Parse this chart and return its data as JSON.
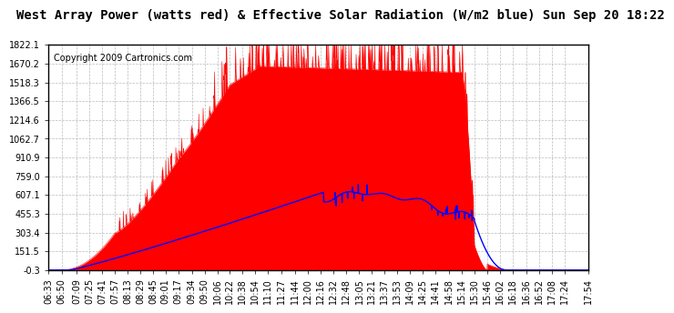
{
  "title": "West Array Power (watts red) & Effective Solar Radiation (W/m2 blue) Sun Sep 20 18:22",
  "copyright": "Copyright 2009 Cartronics.com",
  "background_color": "#ffffff",
  "plot_bg_color": "#ffffff",
  "grid_color": "#aaaaaa",
  "yticks": [
    -0.3,
    151.5,
    303.4,
    455.3,
    607.1,
    759.0,
    910.9,
    1062.7,
    1214.6,
    1366.5,
    1518.3,
    1670.2,
    1822.1
  ],
  "ytick_labels": [
    "-0.3",
    "151.5",
    "303.4",
    "455.3",
    "607.1",
    "759.0",
    "910.9",
    "1062.7",
    "1214.6",
    "1366.5",
    "1518.3",
    "1670.2",
    "1822.1"
  ],
  "ylim": [
    -0.3,
    1822.1
  ],
  "xtick_labels": [
    "06:33",
    "06:50",
    "07:09",
    "07:25",
    "07:41",
    "07:57",
    "08:13",
    "08:29",
    "08:45",
    "09:01",
    "09:17",
    "09:34",
    "09:50",
    "10:06",
    "10:22",
    "10:38",
    "10:54",
    "11:10",
    "11:27",
    "11:44",
    "12:00",
    "12:16",
    "12:32",
    "12:48",
    "13:05",
    "13:21",
    "13:37",
    "13:53",
    "14:09",
    "14:25",
    "14:41",
    "14:58",
    "15:14",
    "15:30",
    "15:46",
    "16:02",
    "16:18",
    "16:36",
    "16:52",
    "17:08",
    "17:24",
    "17:54"
  ],
  "red_color": "#ff0000",
  "blue_color": "#0000ff",
  "title_fontsize": 10,
  "copyright_fontsize": 7,
  "tick_fontsize": 7
}
